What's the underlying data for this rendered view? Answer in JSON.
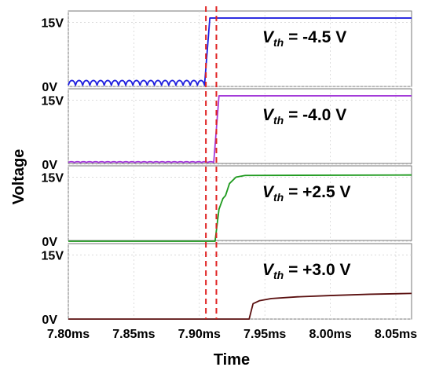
{
  "figure": {
    "xlabel": "Time",
    "ylabel": "Voltage"
  },
  "chart_data": {
    "type": "line",
    "x_ticks": [
      "7.80ms",
      "7.85ms",
      "7.90ms",
      "7.95ms",
      "8.00ms",
      "8.05ms"
    ],
    "x_tick_values_ms": [
      7.8,
      7.85,
      7.9,
      7.95,
      8.0,
      8.05
    ],
    "xlim_ms": [
      7.8,
      8.062
    ],
    "ylim_V": [
      0,
      16
    ],
    "y_ticks": [
      "0V",
      "15V"
    ],
    "markers_ms": [
      7.905,
      7.913
    ],
    "marker_color": "#e02020",
    "panels": [
      {
        "label_main": "V",
        "label_sub": "th",
        "label_value": " = -4.5 V",
        "color": "#1f1fdf",
        "points": [
          [
            7.8,
            0.3
          ],
          [
            7.904,
            0.5
          ],
          [
            7.908,
            16.0
          ],
          [
            8.062,
            16.0
          ]
        ],
        "ripple": {
          "from_ms": 7.8,
          "to_ms": 7.904,
          "count": 19,
          "amplitude_V": 1.1
        }
      },
      {
        "label_main": "V",
        "label_sub": "th",
        "label_value": " = -4.0 V",
        "color": "#a43bd9",
        "points": [
          [
            7.8,
            0.4
          ],
          [
            7.911,
            0.5
          ],
          [
            7.915,
            16.0
          ],
          [
            8.062,
            16.0
          ]
        ],
        "ripple": {
          "from_ms": 7.8,
          "to_ms": 7.911,
          "count": 24,
          "amplitude_V": 0.2
        }
      },
      {
        "label_main": "V",
        "label_sub": "th",
        "label_value": " = +2.5 V",
        "color": "#1e9a1e",
        "points": [
          [
            7.8,
            0.0
          ],
          [
            7.912,
            0.0
          ],
          [
            7.915,
            7.5
          ],
          [
            7.918,
            10.0
          ],
          [
            7.92,
            10.7
          ],
          [
            7.923,
            13.5
          ],
          [
            7.928,
            15.0
          ],
          [
            7.935,
            15.4
          ],
          [
            8.062,
            15.5
          ]
        ]
      },
      {
        "label_main": "V",
        "label_sub": "th",
        "label_value": " = +3.0 V",
        "color": "#5a0f0f",
        "points": [
          [
            7.8,
            0.0
          ],
          [
            7.938,
            0.0
          ],
          [
            7.941,
            3.6
          ],
          [
            7.946,
            4.3
          ],
          [
            7.955,
            4.8
          ],
          [
            7.975,
            5.2
          ],
          [
            8.0,
            5.5
          ],
          [
            8.03,
            5.8
          ],
          [
            8.062,
            6.0
          ]
        ]
      }
    ]
  }
}
